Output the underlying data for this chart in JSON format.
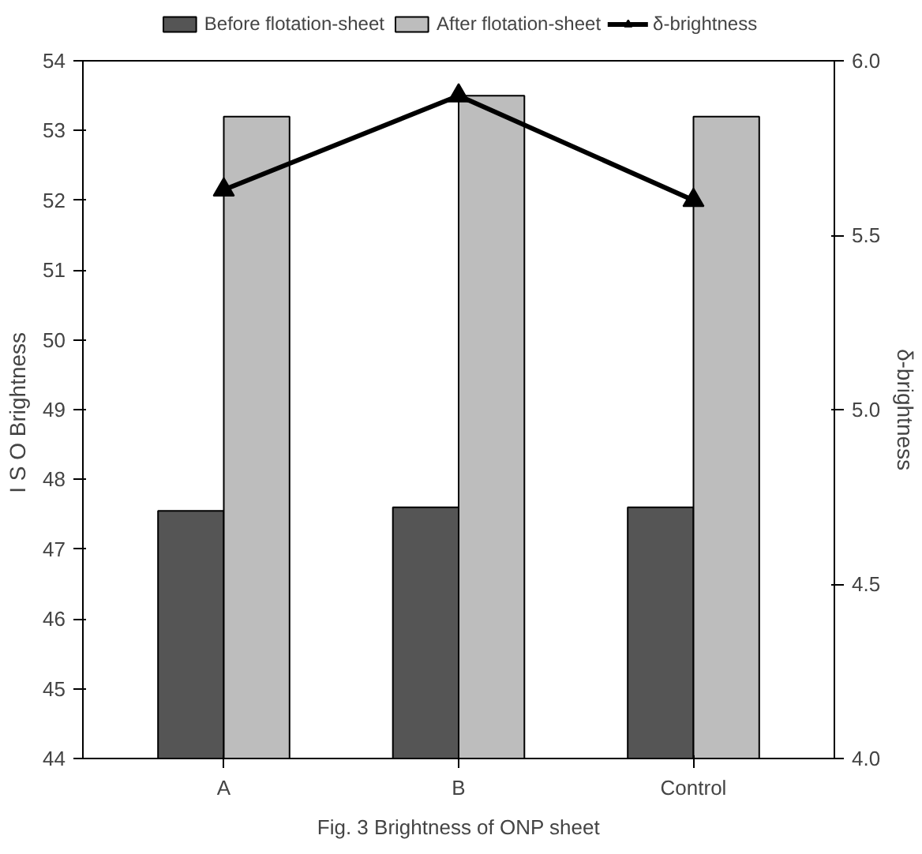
{
  "chart_data": {
    "type": "bar",
    "title": "Fig. 3 Brightness of ONP sheet",
    "ylabel": "I S O  Brightness",
    "y2label": "δ-brightness",
    "categories": [
      "A",
      "B",
      "Control"
    ],
    "series": [
      {
        "name": "Before flotation-sheet",
        "color": "#555555",
        "values": [
          47.55,
          47.6,
          47.6
        ]
      },
      {
        "name": "After flotation-sheet",
        "color": "#bdbdbd",
        "values": [
          53.2,
          53.5,
          53.2
        ]
      },
      {
        "name": "δ-brightness",
        "type": "line",
        "axis": "y2",
        "color": "#000000",
        "values": [
          5.63,
          5.9,
          5.6
        ]
      }
    ],
    "ylim": [
      44,
      54
    ],
    "yticks": [
      44,
      45,
      46,
      47,
      48,
      49,
      50,
      51,
      52,
      53,
      54
    ],
    "y2lim": [
      4.0,
      6.0
    ],
    "y2ticks": [
      {
        "value": 4.0,
        "label": "4.0"
      },
      {
        "value": 4.5,
        "label": "4.5"
      },
      {
        "value": 5.0,
        "label": "5.0"
      },
      {
        "value": 5.5,
        "label": "5.5"
      },
      {
        "value": 6.0,
        "label": "6.0"
      }
    ],
    "marker": "triangle",
    "legend": "top",
    "grid": false
  }
}
